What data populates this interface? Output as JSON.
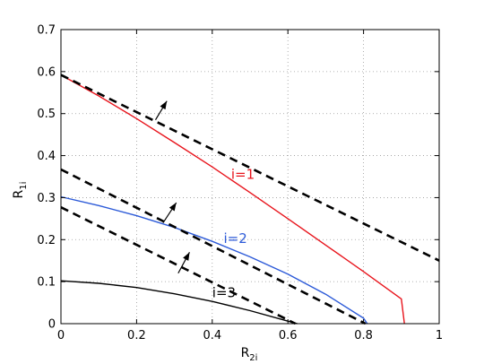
{
  "chart_data": {
    "type": "line",
    "title": "",
    "xlabel": {
      "main": "R",
      "sub": "2i"
    },
    "ylabel": {
      "main": "R",
      "sub": "1i"
    },
    "xlim": [
      0,
      1
    ],
    "ylim": [
      0,
      0.7
    ],
    "xticks": [
      0,
      0.2,
      0.4,
      0.6,
      0.8,
      1
    ],
    "xtick_labels": [
      "0",
      "0.2",
      "0.4",
      "0.6",
      "0.8",
      "1"
    ],
    "yticks": [
      0,
      0.1,
      0.2,
      0.3,
      0.4,
      0.5,
      0.6,
      0.7
    ],
    "ytick_labels": [
      "0",
      "0.1",
      "0.2",
      "0.3",
      "0.4",
      "0.5",
      "0.6",
      "0.7"
    ],
    "grid": true,
    "series": [
      {
        "key": "i1",
        "color": "#e8141c",
        "style": "solid",
        "x": [
          0,
          0.1,
          0.2,
          0.3,
          0.4,
          0.5,
          0.6,
          0.7,
          0.8,
          0.9,
          0.908
        ],
        "y": [
          0.592,
          0.542,
          0.488,
          0.431,
          0.373,
          0.312,
          0.25,
          0.187,
          0.124,
          0.059,
          0
        ]
      },
      {
        "key": "i2",
        "color": "#2c5ad8",
        "style": "solid",
        "x": [
          0,
          0.1,
          0.2,
          0.3,
          0.4,
          0.5,
          0.6,
          0.7,
          0.8,
          0.81
        ],
        "y": [
          0.302,
          0.281,
          0.257,
          0.229,
          0.196,
          0.159,
          0.118,
          0.07,
          0.013,
          0
        ]
      },
      {
        "key": "i3",
        "color": "#000000",
        "style": "solid",
        "x": [
          0,
          0.1,
          0.2,
          0.3,
          0.4,
          0.5,
          0.6,
          0.625
        ],
        "y": [
          0.102,
          0.096,
          0.086,
          0.071,
          0.053,
          0.031,
          0.006,
          0
        ]
      },
      {
        "key": "tangent_1",
        "color": "#000000",
        "style": "dashed",
        "x": [
          0,
          1
        ],
        "y": [
          0.592,
          0.15
        ]
      },
      {
        "key": "tangent_2",
        "color": "#000000",
        "style": "dashed",
        "x": [
          0,
          0.805
        ],
        "y": [
          0.367,
          0
        ]
      },
      {
        "key": "tangent_3",
        "color": "#000000",
        "style": "dashed",
        "x": [
          0,
          0.62
        ],
        "y": [
          0.277,
          0
        ]
      }
    ],
    "arrows": [
      {
        "from": [
          0.25,
          0.485
        ],
        "to": [
          0.28,
          0.53
        ]
      },
      {
        "from": [
          0.27,
          0.24
        ],
        "to": [
          0.305,
          0.288
        ]
      },
      {
        "from": [
          0.31,
          0.12
        ],
        "to": [
          0.34,
          0.17
        ]
      }
    ],
    "annotations": [
      {
        "text": "i=1",
        "x": 0.45,
        "y": 0.345,
        "color": "#e8141c"
      },
      {
        "text": "i=2",
        "x": 0.43,
        "y": 0.192,
        "color": "#2c5ad8"
      },
      {
        "text": "i=3",
        "x": 0.4,
        "y": 0.063,
        "color": "#000000"
      }
    ]
  }
}
